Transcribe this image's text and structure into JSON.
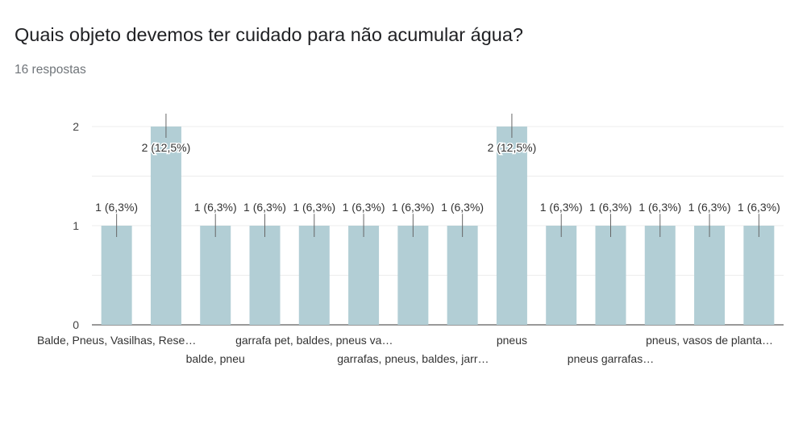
{
  "header": {
    "title": "Quais objeto devemos ter cuidado para não acumular água?",
    "responses": "16 respostas"
  },
  "colors": {
    "bar": "#b2ced5",
    "grid": "#ececec",
    "axis": "#333333",
    "tick_text": "#444444",
    "label_text": "#333333"
  },
  "chart_data": {
    "type": "bar",
    "categories": [
      "Balde, Pneus, Vasilhas, Rese…",
      "",
      "balde, pneu",
      "",
      "garrafa pet, baldes, pneus va…",
      "",
      "garrafas, pneus, baldes, jarr…",
      "",
      "pneus",
      "",
      "pneus garrafas…",
      "",
      "pneus, vasos de planta…",
      ""
    ],
    "values": [
      1,
      2,
      1,
      1,
      1,
      1,
      1,
      1,
      2,
      1,
      1,
      1,
      1,
      1
    ],
    "data_labels": [
      "1 (6,3%)",
      "2 (12,5%)",
      "1 (6,3%)",
      "1 (6,3%)",
      "1 (6,3%)",
      "1 (6,3%)",
      "1 (6,3%)",
      "1 (6,3%)",
      "2 (12,5%)",
      "1 (6,3%)",
      "1 (6,3%)",
      "1 (6,3%)",
      "1 (6,3%)",
      "1 (6,3%)"
    ],
    "y_ticks": [
      "0",
      "1",
      "2"
    ],
    "ylim": [
      0,
      2
    ],
    "grid": true,
    "legend": "none"
  }
}
